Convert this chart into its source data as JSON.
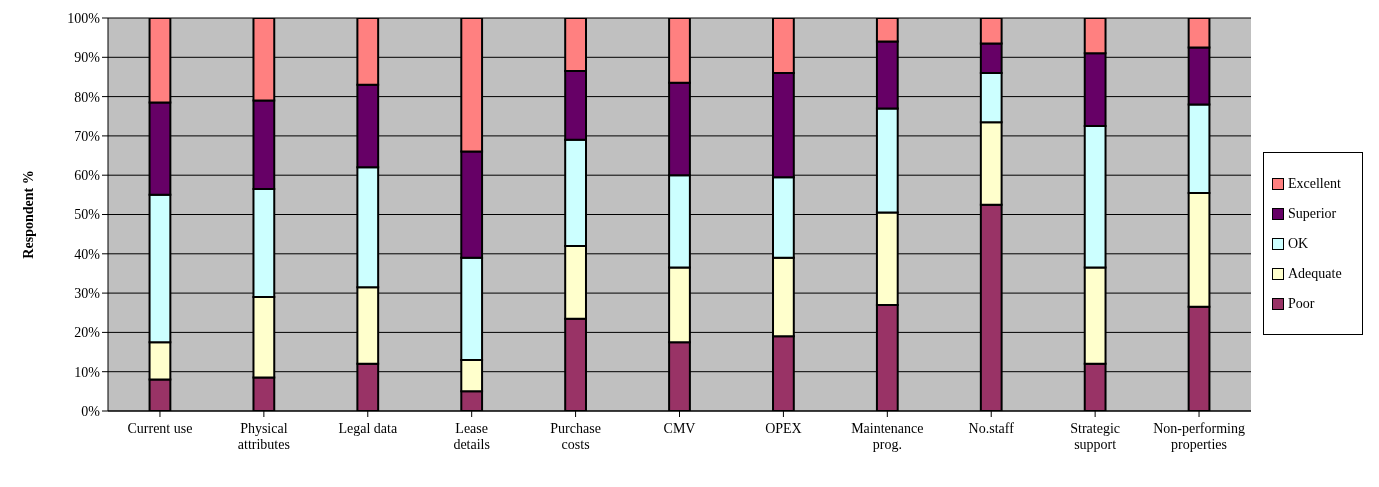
{
  "chart_data": {
    "type": "bar",
    "stacked": true,
    "ylabel": "Respondent %",
    "categories": [
      "Current use",
      "Physical attributes",
      "Legal data",
      "Lease details",
      "Purchase costs",
      "CMV",
      "OPEX",
      "Maintenance prog.",
      "No.staff",
      "Strategic support",
      "Non-performing properties"
    ],
    "series": [
      {
        "name": "Poor",
        "color": "#993366",
        "values": [
          8,
          8.5,
          12,
          5,
          23.5,
          17.5,
          19,
          27,
          52.5,
          12,
          26.5
        ]
      },
      {
        "name": "Adequate",
        "color": "#ffffcc",
        "values": [
          9.5,
          20.5,
          19.5,
          8,
          18.5,
          19,
          20,
          23.5,
          21,
          24.5,
          29
        ]
      },
      {
        "name": "OK",
        "color": "#ccffff",
        "values": [
          37.5,
          27.5,
          30.5,
          26,
          27,
          23.5,
          20.5,
          26.5,
          12.5,
          36,
          22.5
        ]
      },
      {
        "name": "Superior",
        "color": "#660066",
        "values": [
          23.5,
          22.5,
          21,
          27,
          17.5,
          23.5,
          26.5,
          17,
          7.5,
          18.5,
          14.5
        ]
      },
      {
        "name": "Excellent",
        "color": "#ff8080",
        "values": [
          21.5,
          21,
          17,
          34,
          13.5,
          16.5,
          14,
          6,
          6.5,
          9,
          7.5
        ]
      }
    ],
    "ylim": [
      0,
      100
    ],
    "yticks": [
      {
        "value": 0,
        "label": "0%"
      },
      {
        "value": 10,
        "label": "10%"
      },
      {
        "value": 20,
        "label": "20%"
      },
      {
        "value": 30,
        "label": "30%"
      },
      {
        "value": 40,
        "label": "40%"
      },
      {
        "value": 50,
        "label": "50%"
      },
      {
        "value": 60,
        "label": "60%"
      },
      {
        "value": 70,
        "label": "70%"
      },
      {
        "value": 80,
        "label": "80%"
      },
      {
        "value": 90,
        "label": "90%"
      },
      {
        "value": 100,
        "label": "100%"
      }
    ],
    "grid": "y",
    "legend": "right"
  }
}
